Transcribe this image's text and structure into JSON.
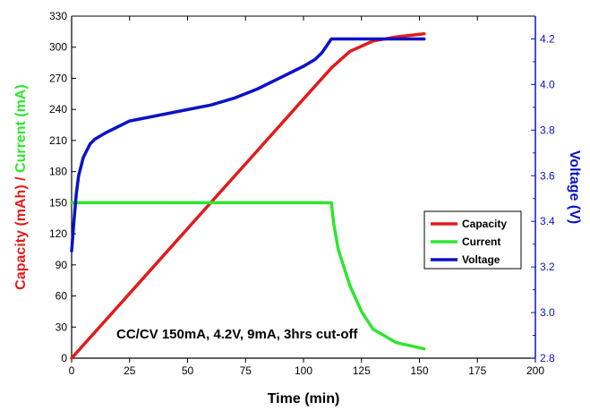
{
  "chart_data": {
    "type": "line",
    "xlabel": "Time (min)",
    "ylabel_left_parts": [
      {
        "text": "Capacity (mAh)",
        "color": "#e21b1b"
      },
      {
        "text": " / ",
        "color": "#e21b1b"
      },
      {
        "text": "Current (mA)",
        "color": "#2ee62e"
      }
    ],
    "ylabel_right": "Voltage (V)",
    "xlim": [
      0,
      200
    ],
    "ylim_left": [
      0,
      330
    ],
    "ylim_right": [
      2.8,
      4.3
    ],
    "x_ticks": [
      0,
      25,
      50,
      75,
      100,
      125,
      150,
      175,
      200
    ],
    "y_ticks_left": [
      0,
      30,
      60,
      90,
      120,
      150,
      180,
      210,
      240,
      270,
      300,
      330
    ],
    "y_ticks_right": [
      "2.8",
      "3.0",
      "3.2",
      "3.4",
      "3.6",
      "3.8",
      "4.0",
      "4.2"
    ],
    "annotation": "CC/CV 150mA, 4.2V, 9mA, 3hrs cut-off",
    "grid": false,
    "legend_position": "center-right",
    "series": [
      {
        "name": "Capacity",
        "color": "#e21b1b",
        "axis": "left",
        "x": [
          0,
          25,
          50,
          75,
          100,
          112,
          120,
          130,
          140,
          152
        ],
        "y": [
          0,
          62.5,
          125,
          187.5,
          250,
          280,
          296,
          306,
          310,
          313
        ]
      },
      {
        "name": "Current",
        "color": "#2ee62e",
        "axis": "left",
        "x": [
          0,
          25,
          50,
          75,
          100,
          112,
          113,
          115,
          120,
          125,
          130,
          140,
          152
        ],
        "y": [
          150,
          150,
          150,
          150,
          150,
          150,
          130,
          105,
          70,
          45,
          28,
          15,
          9
        ]
      },
      {
        "name": "Voltage",
        "color": "#0a12c8",
        "axis": "right",
        "x": [
          0,
          1,
          2,
          3,
          5,
          8,
          10,
          15,
          25,
          40,
          50,
          60,
          70,
          80,
          90,
          100,
          105,
          108,
          112,
          120,
          130,
          140,
          152
        ],
        "y": [
          3.27,
          3.4,
          3.52,
          3.6,
          3.68,
          3.74,
          3.76,
          3.79,
          3.84,
          3.87,
          3.89,
          3.91,
          3.94,
          3.98,
          4.03,
          4.08,
          4.11,
          4.14,
          4.2,
          4.2,
          4.2,
          4.2,
          4.2
        ]
      }
    ]
  }
}
